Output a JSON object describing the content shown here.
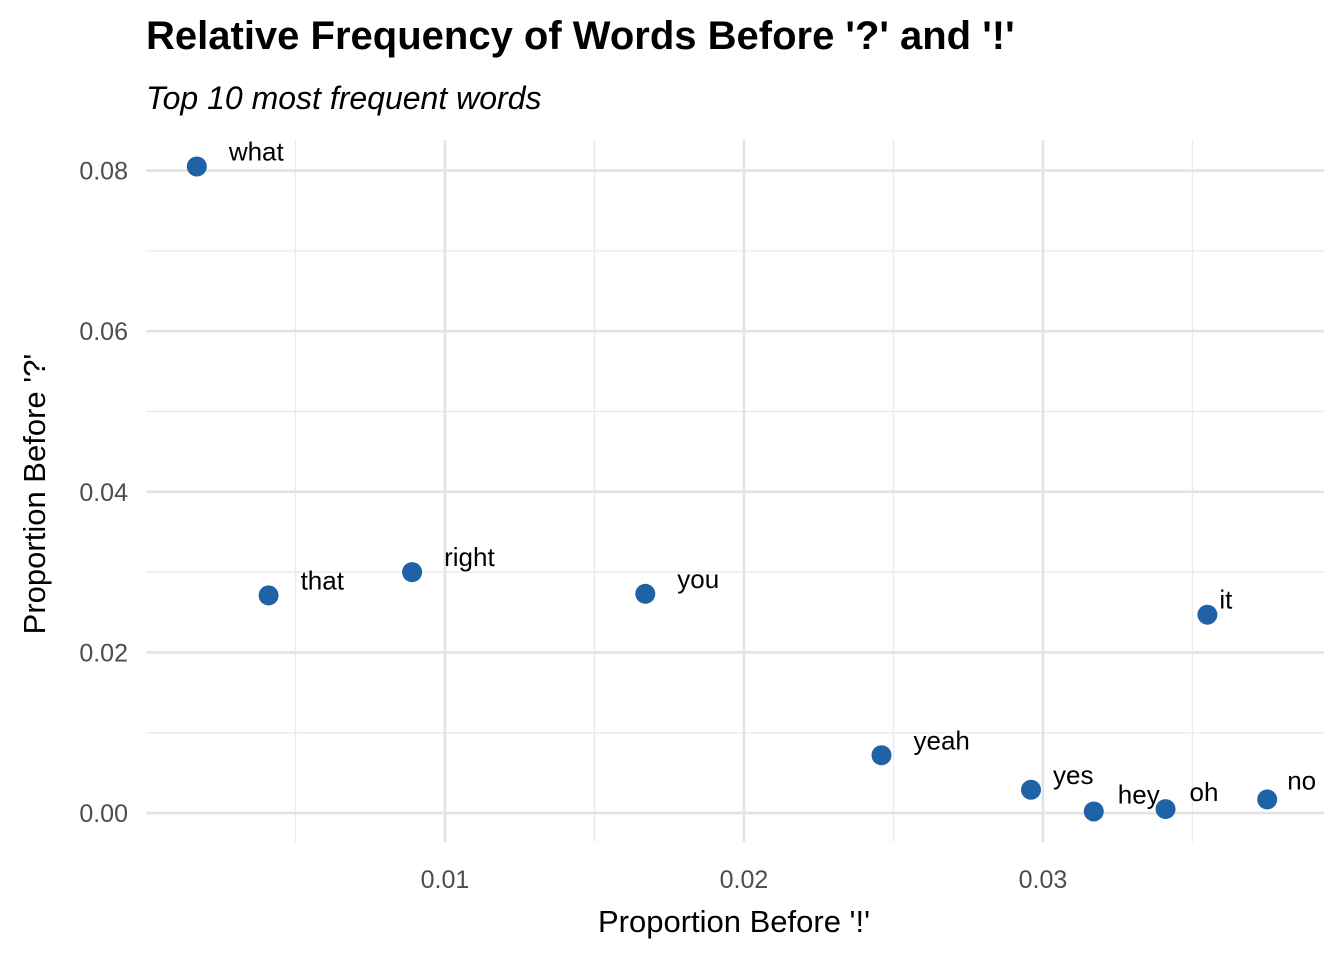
{
  "chart_data": {
    "type": "scatter",
    "title": "Relative Frequency of Words Before '?' and '!'",
    "subtitle": "Top 10 most frequent words",
    "xlabel": "Proportion Before '!'",
    "ylabel": "Proportion Before '?'",
    "xlim": [
      0.0,
      0.0394
    ],
    "ylim": [
      -0.0036,
      0.0838
    ],
    "x_ticks": [
      0.01,
      0.02,
      0.03
    ],
    "x_tick_labels": [
      "0.01",
      "0.02",
      "0.03"
    ],
    "x_minor_ticks": [
      0.005,
      0.015,
      0.025,
      0.035
    ],
    "y_ticks": [
      0.0,
      0.02,
      0.04,
      0.06,
      0.08
    ],
    "y_tick_labels": [
      "0.00",
      "0.02",
      "0.04",
      "0.06",
      "0.08"
    ],
    "y_minor_ticks": [
      0.01,
      0.03,
      0.05,
      0.07
    ],
    "grid": true,
    "point_color": "#1f62a6",
    "points": [
      {
        "label": "what",
        "x": 0.0017,
        "y": 0.0805
      },
      {
        "label": "that",
        "x": 0.0041,
        "y": 0.0271
      },
      {
        "label": "right",
        "x": 0.0089,
        "y": 0.03
      },
      {
        "label": "you",
        "x": 0.0167,
        "y": 0.0273
      },
      {
        "label": "it",
        "x": 0.0355,
        "y": 0.0247
      },
      {
        "label": "yeah",
        "x": 0.0246,
        "y": 0.0072
      },
      {
        "label": "yes",
        "x": 0.0296,
        "y": 0.0029
      },
      {
        "label": "hey",
        "x": 0.0317,
        "y": 0.0002
      },
      {
        "label": "oh",
        "x": 0.0341,
        "y": 0.0005
      },
      {
        "label": "no",
        "x": 0.0375,
        "y": 0.0017
      }
    ]
  }
}
